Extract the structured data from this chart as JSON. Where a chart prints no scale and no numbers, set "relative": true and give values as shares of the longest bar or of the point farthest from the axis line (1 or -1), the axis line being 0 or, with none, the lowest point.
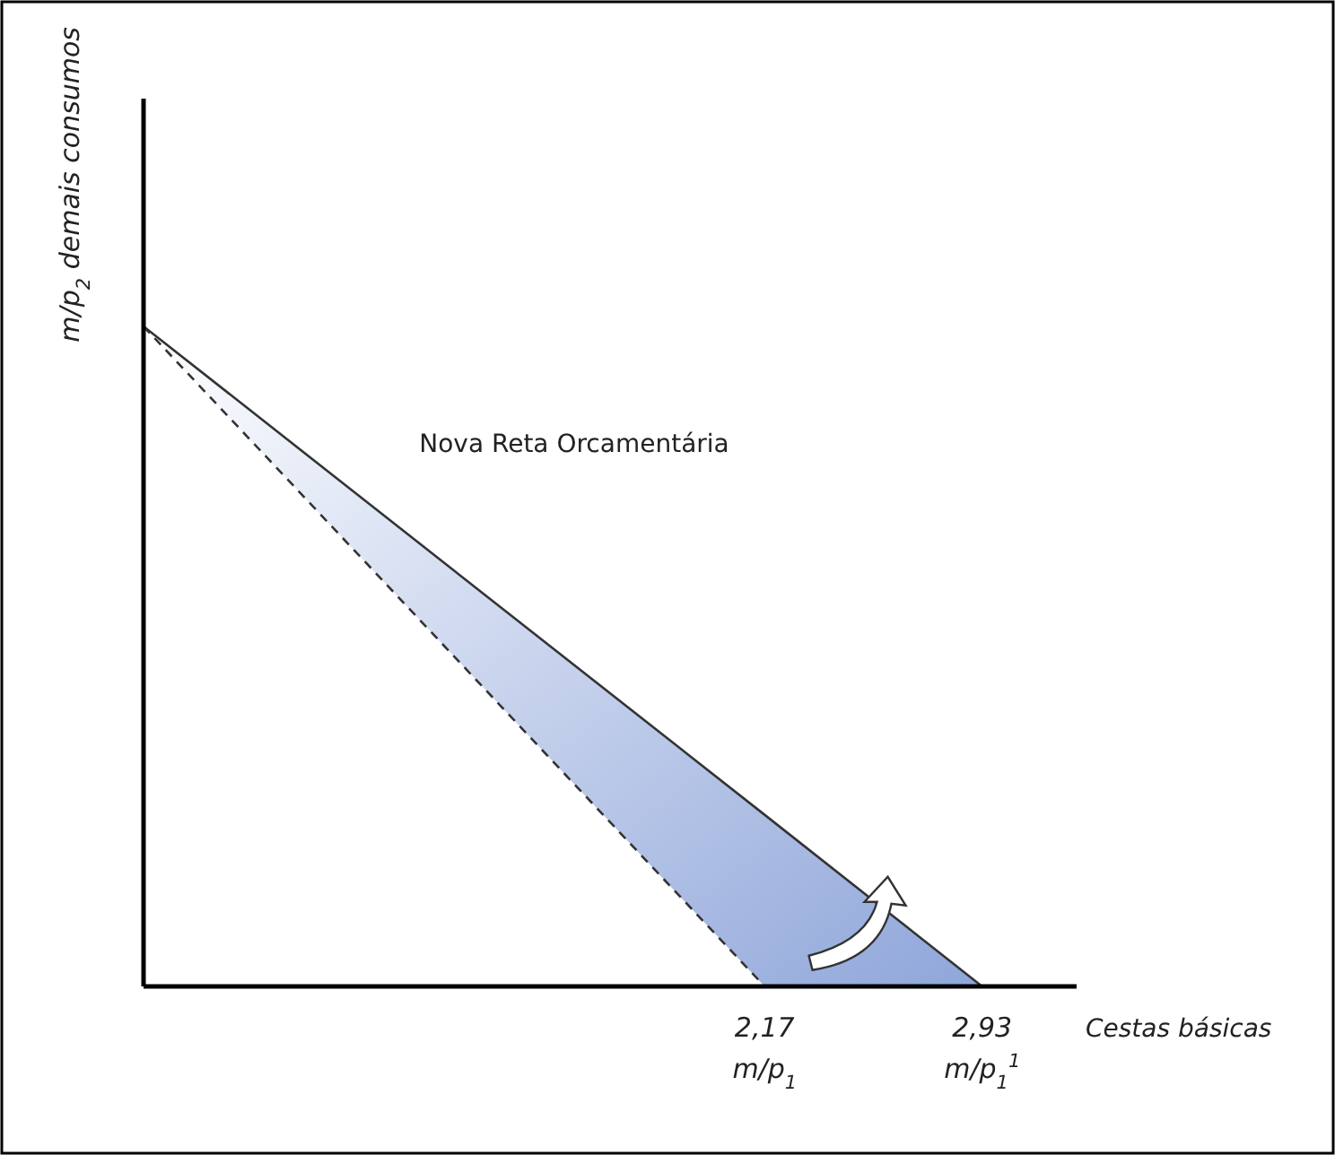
{
  "chart_data": {
    "type": "line",
    "relative": true,
    "xlabel": "Cestas básicas",
    "ylabel": "m/p$_{2}$ demais consumos",
    "xlim": [
      0,
      3.26
    ],
    "xticks": [
      {
        "value": 2.17,
        "label": "2,17"
      },
      {
        "value": 2.93,
        "label": "2,93"
      }
    ],
    "series": [
      {
        "color": "#333333",
        "line_style": "solid",
        "x": [
          0,
          2.17,
          2.93
        ],
        "values": [
          1,
          0.26,
          0
        ],
        "lower": [
          1,
          0,
          0
        ],
        "upper": [
          1,
          0.26,
          0
        ]
      },
      {
        "color": "#333333",
        "line_style": "dashed",
        "x": [
          0,
          2.17
        ],
        "values": [
          1,
          0
        ]
      }
    ],
    "annotations": [
      "Nova Reta Orcamentária",
      {
        "text": "m/p$_{1}$",
        "x": 2.17,
        "y": 0
      },
      {
        "text": "m/p$_{1}$$^{1}$",
        "x": 2.93,
        "y": 0
      }
    ]
  }
}
